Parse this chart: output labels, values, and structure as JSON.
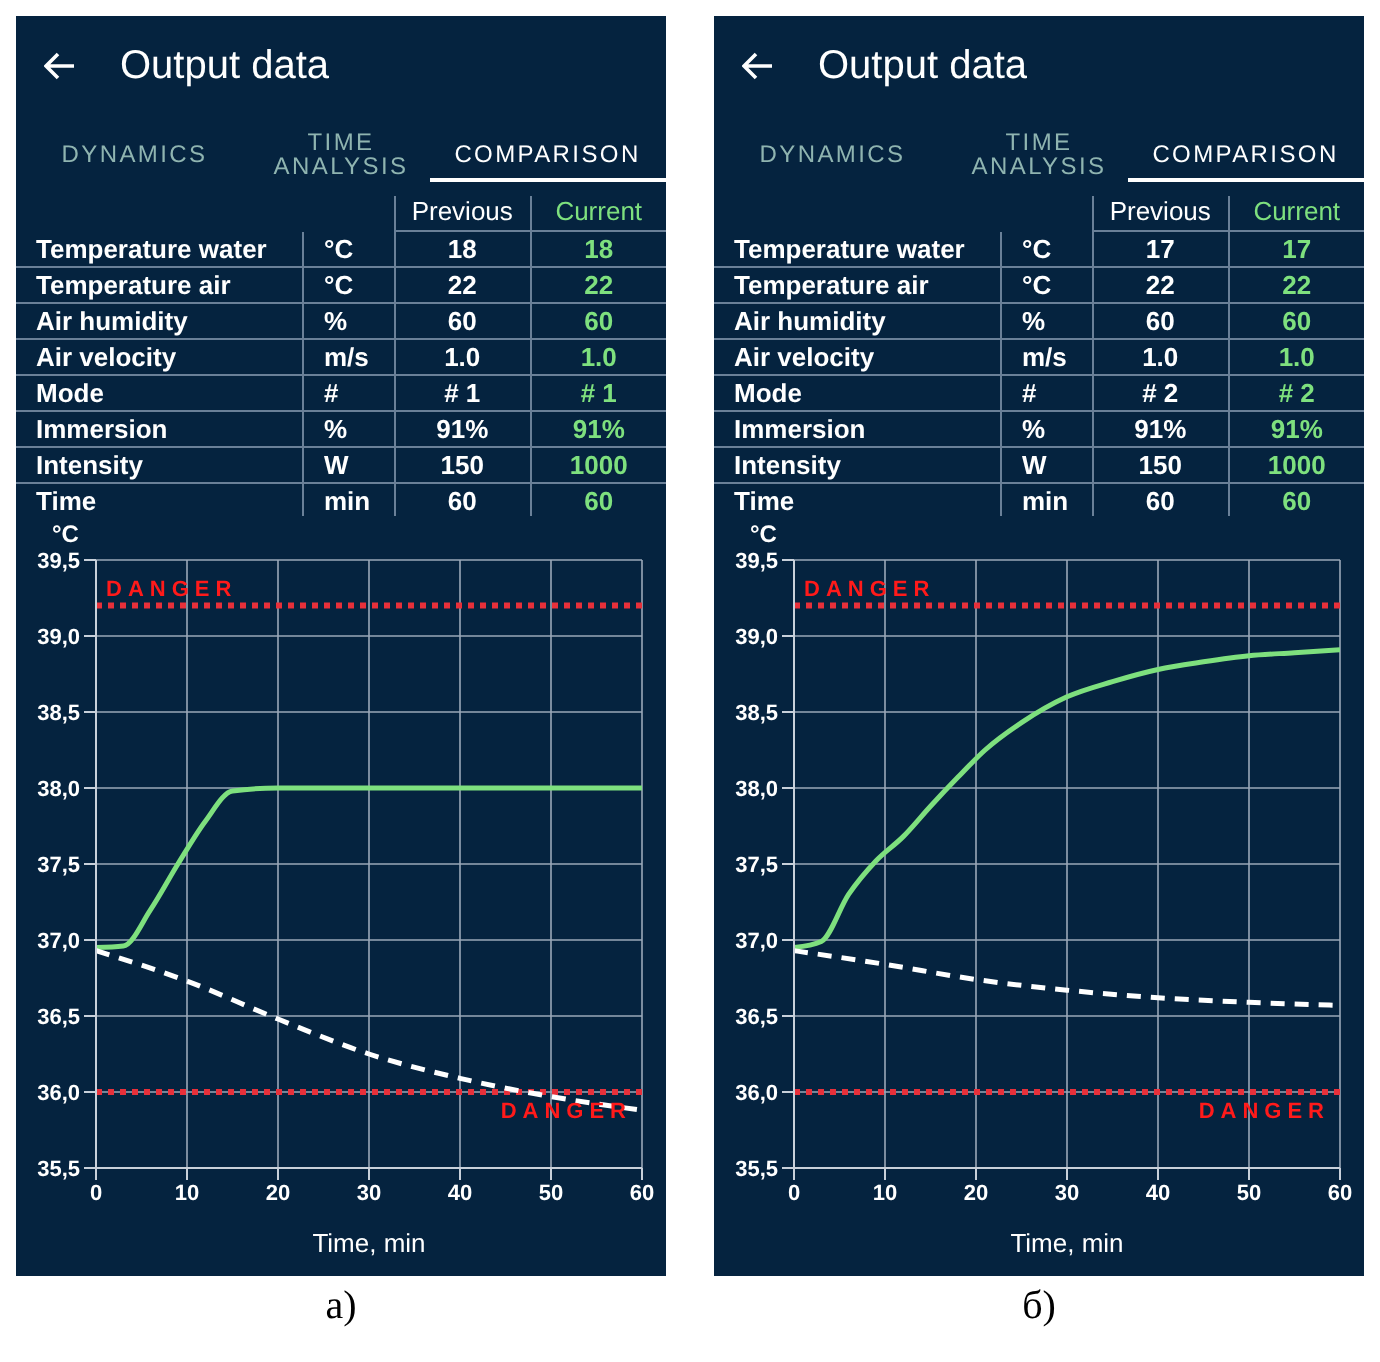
{
  "chart_data": [
    {
      "type": "other",
      "title": "Output data",
      "annotations": [
        "DYNAMICS",
        "TIME ANALYSIS",
        "COMPARISON",
        "Previous",
        "Current",
        "Temperature water",
        "°C",
        "18",
        "18",
        "Temperature air",
        "°C",
        "22",
        "22",
        "Air humidity",
        "%",
        "60",
        "60",
        "Air velocity",
        "m/s",
        "1.0",
        "1.0",
        "Mode",
        "#",
        "# 1",
        "# 1",
        "Immersion",
        "%",
        "91%",
        "91%",
        "Intensity",
        "W",
        "150",
        "1000",
        "Time",
        "min",
        "60",
        "60"
      ]
    },
    {
      "type": "line",
      "xlabel": "Time, min",
      "ylabel": "°C",
      "annotations": [
        "а)"
      ],
      "grid": true,
      "xlim": [
        0,
        60
      ],
      "xticks": [
        0,
        10,
        20,
        30,
        40,
        50,
        60
      ],
      "ylim": [
        35.5,
        39.5
      ],
      "yticks": [
        {
          "value": 35.5,
          "label": "35,5"
        },
        {
          "value": 36,
          "label": "36,0"
        },
        {
          "value": 36.5,
          "label": "36,5"
        },
        {
          "value": 37,
          "label": "37,0"
        },
        {
          "value": 37.5,
          "label": "37,5"
        },
        {
          "value": 38,
          "label": "38,0"
        },
        {
          "value": 38.5,
          "label": "38,5"
        },
        {
          "value": 39,
          "label": "39,0"
        },
        {
          "value": 39.5,
          "label": "39,5"
        }
      ],
      "series": [
        {
          "color": "#7ee07e",
          "line_style": "solid",
          "x": [
            0,
            3,
            6,
            9,
            12,
            15,
            20,
            30,
            40,
            50,
            60
          ],
          "values": [
            36.95,
            36.96,
            37.2,
            37.5,
            37.78,
            37.98,
            38.0,
            38.0,
            38.0,
            38.0,
            38.0
          ]
        },
        {
          "color": "#ffffff",
          "line_style": "dashed",
          "x": [
            0,
            10,
            20,
            30,
            40,
            50,
            60
          ],
          "values": [
            36.93,
            36.73,
            36.48,
            36.25,
            36.09,
            35.97,
            35.88
          ]
        }
      ],
      "ref_lines": [
        {
          "axis": "y",
          "value": 39.2,
          "label": "DANGER",
          "color": "#e8303a",
          "line_style": "dotted"
        },
        {
          "axis": "y",
          "value": 36.0,
          "label": "DANGER",
          "color": "#e8303a",
          "line_style": "dotted"
        }
      ]
    },
    {
      "type": "other",
      "title": "Output data",
      "annotations": [
        "DYNAMICS",
        "TIME ANALYSIS",
        "COMPARISON",
        "Previous",
        "Current",
        "Temperature water",
        "°C",
        "17",
        "17",
        "Temperature air",
        "°C",
        "22",
        "22",
        "Air humidity",
        "%",
        "60",
        "60",
        "Air velocity",
        "m/s",
        "1.0",
        "1.0",
        "Mode",
        "#",
        "# 2",
        "# 2",
        "Immersion",
        "%",
        "91%",
        "91%",
        "Intensity",
        "W",
        "150",
        "1000",
        "Time",
        "min",
        "60",
        "60"
      ]
    },
    {
      "type": "line",
      "xlabel": "Time, min",
      "ylabel": "°C",
      "annotations": [
        "б)"
      ],
      "grid": true,
      "xlim": [
        0,
        60
      ],
      "xticks": [
        0,
        10,
        20,
        30,
        40,
        50,
        60
      ],
      "ylim": [
        35.5,
        39.5
      ],
      "yticks": [
        {
          "value": 35.5,
          "label": "35,5"
        },
        {
          "value": 36,
          "label": "36,0"
        },
        {
          "value": 36.5,
          "label": "36,5"
        },
        {
          "value": 37,
          "label": "37,0"
        },
        {
          "value": 37.5,
          "label": "37,5"
        },
        {
          "value": 38,
          "label": "38,0"
        },
        {
          "value": 38.5,
          "label": "38,5"
        },
        {
          "value": 39,
          "label": "39,0"
        },
        {
          "value": 39.5,
          "label": "39,5"
        }
      ],
      "series": [
        {
          "color": "#7ee07e",
          "line_style": "solid",
          "x": [
            0,
            3,
            6,
            9,
            12,
            15,
            18,
            21,
            25,
            30,
            35,
            40,
            45,
            50,
            55,
            60
          ],
          "values": [
            36.95,
            36.99,
            37.3,
            37.52,
            37.68,
            37.88,
            38.07,
            38.25,
            38.43,
            38.6,
            38.7,
            38.78,
            38.83,
            38.87,
            38.89,
            38.91
          ]
        },
        {
          "color": "#ffffff",
          "line_style": "dashed",
          "x": [
            0,
            10,
            20,
            30,
            40,
            50,
            60
          ],
          "values": [
            36.93,
            36.84,
            36.74,
            36.67,
            36.62,
            36.59,
            36.57
          ]
        }
      ],
      "ref_lines": [
        {
          "axis": "y",
          "value": 39.2,
          "label": "DANGER",
          "color": "#e8303a",
          "line_style": "dotted"
        },
        {
          "axis": "y",
          "value": 36.0,
          "label": "DANGER",
          "color": "#e8303a",
          "line_style": "dotted"
        }
      ]
    }
  ]
}
